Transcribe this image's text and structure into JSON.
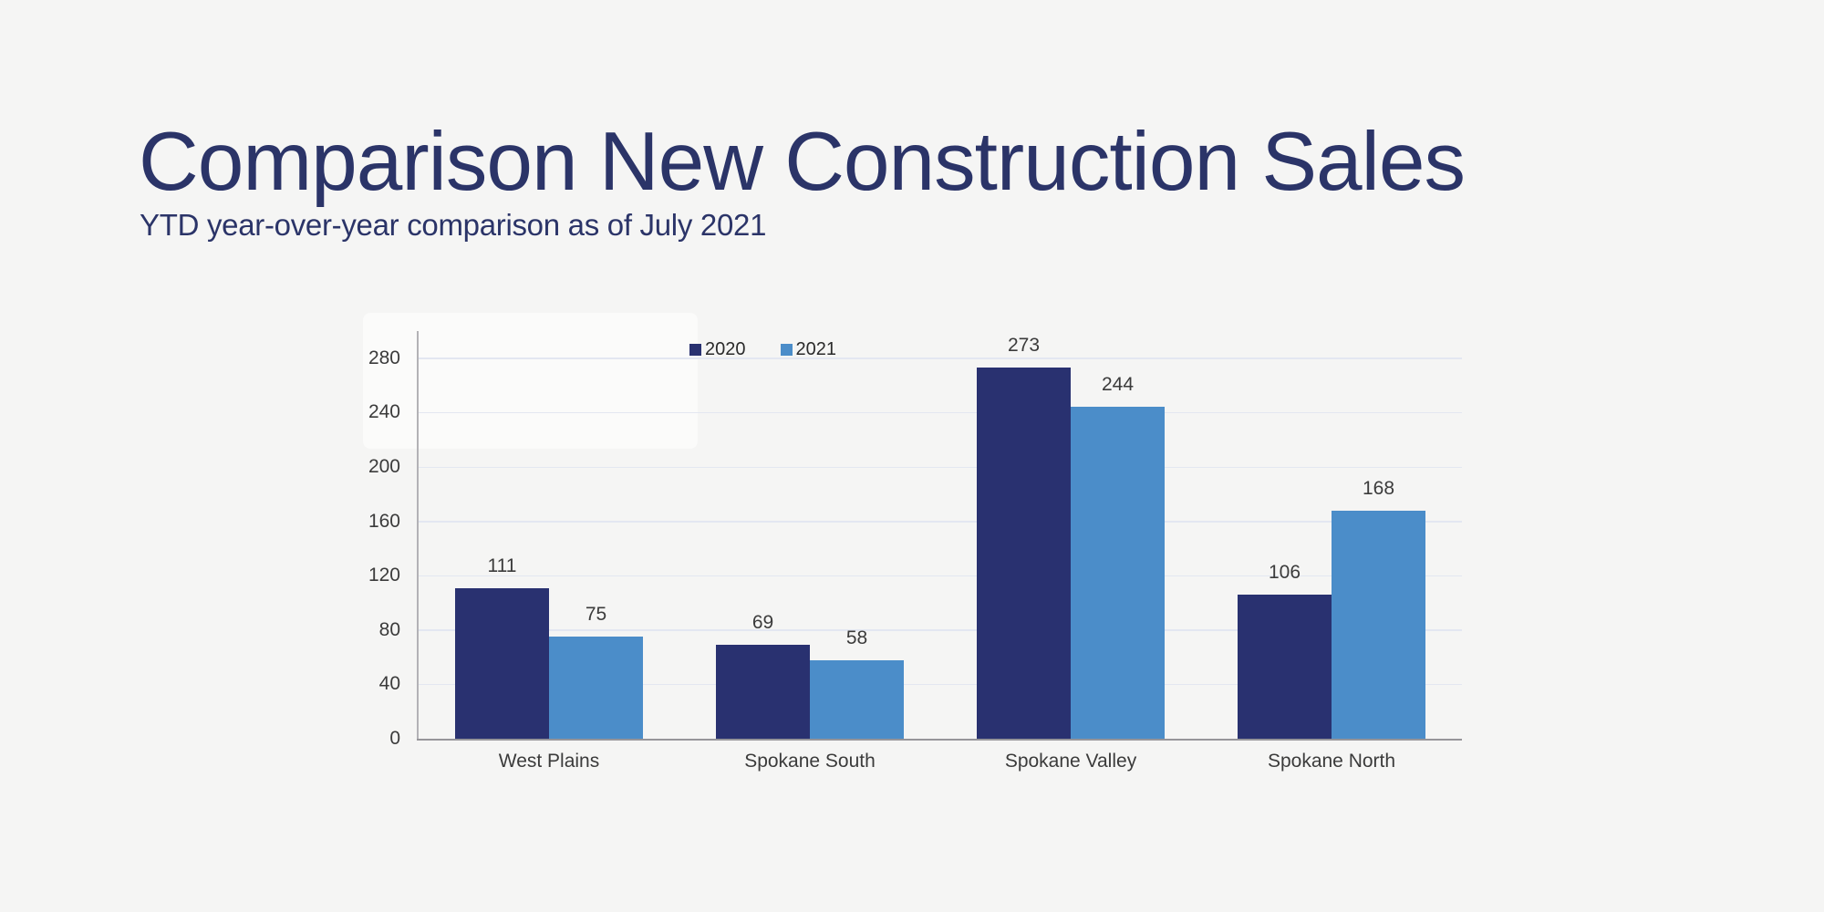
{
  "page": {
    "background_color": "#f5f5f4"
  },
  "header": {
    "title": "Comparison New Construction Sales",
    "subtitle": "YTD year-over-year comparison as of July 2021",
    "text_color": "#2b3468"
  },
  "chart_data": {
    "type": "bar",
    "title": "Comparison New Construction Sales",
    "subtitle": "YTD year-over-year comparison as of July 2021",
    "categories": [
      "West Plains",
      "Spokane South",
      "Spokane Valley",
      "Spokane North"
    ],
    "series": [
      {
        "name": "2020",
        "color": "#293170",
        "values": [
          111,
          69,
          273,
          106
        ]
      },
      {
        "name": "2021",
        "color": "#4b8dc9",
        "values": [
          75,
          58,
          244,
          168
        ]
      }
    ],
    "xlabel": "",
    "ylabel": "",
    "ylim": [
      0,
      300
    ],
    "yticks": [
      0,
      40,
      80,
      120,
      160,
      200,
      240,
      280
    ],
    "grid": true,
    "gridline_color": "#e3e7f1",
    "axis_line_color": "#96959a",
    "label_color": "#3b3b3b",
    "legend_position": "top",
    "value_labels": true
  }
}
